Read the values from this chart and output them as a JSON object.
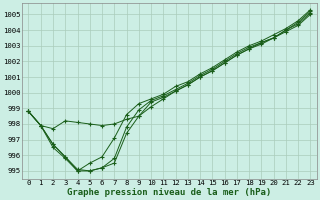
{
  "title": "Graphe pression niveau de la mer (hPa)",
  "bg_color": "#cceee4",
  "grid_color": "#aaccbb",
  "line_color": "#1a5e1a",
  "xlim": [
    -0.5,
    23.5
  ],
  "ylim": [
    994.5,
    1005.7
  ],
  "yticks": [
    995,
    996,
    997,
    998,
    999,
    1000,
    1001,
    1002,
    1003,
    1004,
    1005
  ],
  "xticks": [
    0,
    1,
    2,
    3,
    4,
    5,
    6,
    7,
    8,
    9,
    10,
    11,
    12,
    13,
    14,
    15,
    16,
    17,
    18,
    19,
    20,
    21,
    22,
    23
  ],
  "series": [
    [
      998.8,
      997.9,
      997.7,
      998.2,
      998.1,
      998.0,
      997.9,
      998.0,
      998.3,
      998.5,
      999.1,
      999.6,
      1000.1,
      1000.5,
      1001.0,
      1001.4,
      1001.9,
      1002.4,
      1002.8,
      1003.1,
      1003.5,
      1003.9,
      1004.3,
      1005.0
    ],
    [
      998.8,
      997.9,
      996.7,
      995.9,
      995.1,
      995.0,
      995.2,
      995.5,
      997.4,
      998.5,
      999.4,
      999.7,
      1000.1,
      1000.5,
      1001.0,
      1001.4,
      1001.9,
      1002.4,
      1002.8,
      1003.2,
      1003.5,
      1004.0,
      1004.5,
      1005.2
    ],
    [
      998.8,
      997.9,
      996.7,
      995.9,
      995.0,
      995.0,
      995.2,
      995.8,
      997.8,
      998.9,
      999.5,
      999.8,
      1000.2,
      1000.6,
      1001.1,
      1001.5,
      1002.0,
      1002.5,
      1002.9,
      1003.2,
      1003.5,
      1004.0,
      1004.4,
      1005.1
    ],
    [
      998.8,
      997.9,
      996.5,
      995.8,
      995.0,
      995.5,
      995.9,
      997.1,
      998.6,
      999.3,
      999.6,
      999.9,
      1000.4,
      1000.7,
      1001.2,
      1001.6,
      1002.1,
      1002.6,
      1003.0,
      1003.3,
      1003.7,
      1004.1,
      1004.6,
      1005.3
    ]
  ],
  "tick_fontsize": 5.2,
  "xlabel_fontsize": 6.5
}
